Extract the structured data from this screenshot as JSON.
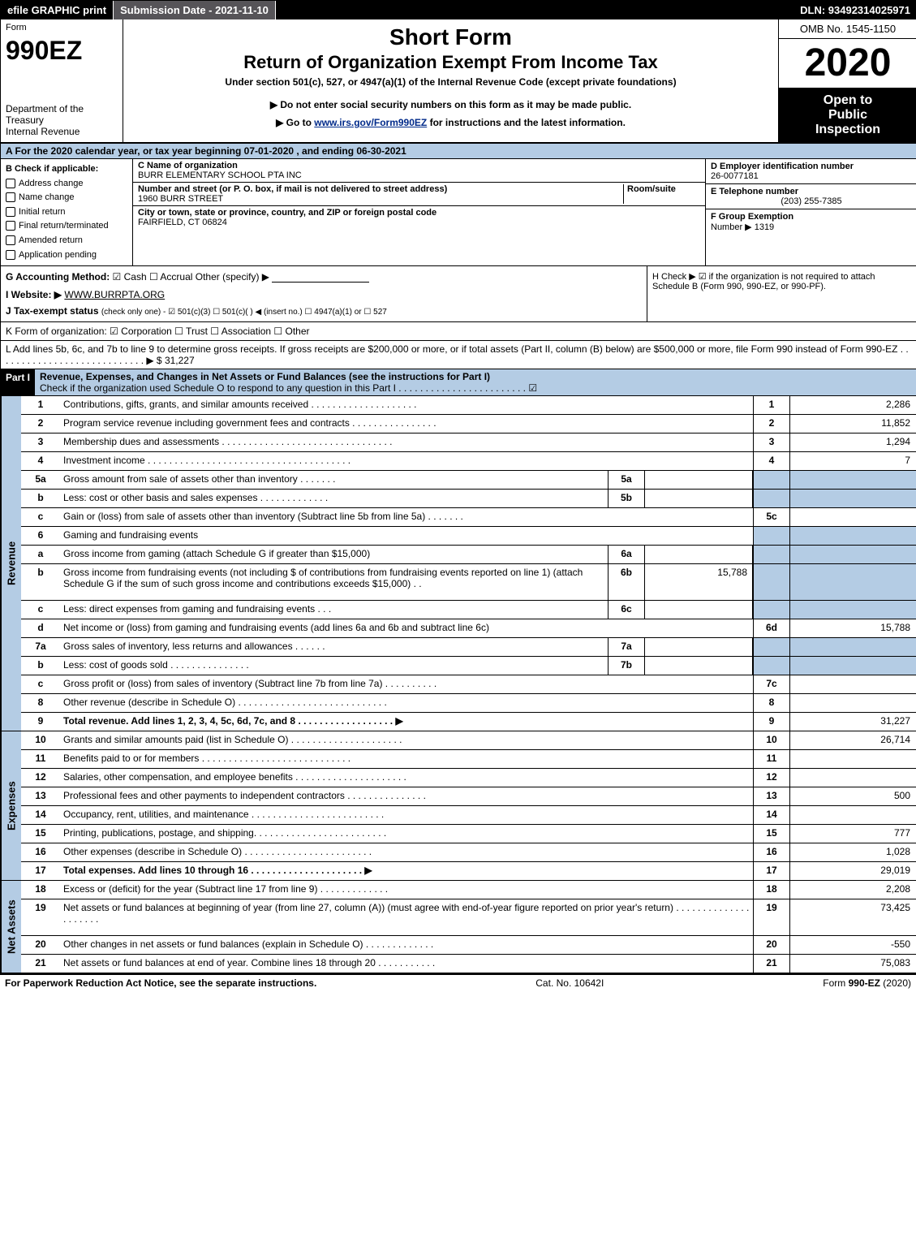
{
  "topbar": {
    "efile": "efile GRAPHIC print",
    "submission_label": "Submission Date - 2021-11-10",
    "dln": "DLN: 93492314025971"
  },
  "header": {
    "form_label": "Form",
    "form_code": "990EZ",
    "dept1": "Department of the Treasury",
    "dept2": "Internal Revenue",
    "title": "Short Form",
    "subtitle": "Return of Organization Exempt From Income Tax",
    "under": "Under section 501(c), 527, or 4947(a)(1) of the Internal Revenue Code (except private foundations)",
    "note": "▶ Do not enter social security numbers on this form as it may be made public.",
    "link_pre": "▶ Go to ",
    "link_url": "www.irs.gov/Form990EZ",
    "link_post": " for instructions and the latest information.",
    "omb": "OMB No. 1545-1150",
    "year": "2020",
    "open1": "Open to",
    "open2": "Public",
    "open3": "Inspection"
  },
  "row_a": "A For the 2020 calendar year, or tax year beginning 07-01-2020 , and ending 06-30-2021",
  "section_b": {
    "label": "B  Check if applicable:",
    "items": [
      "Address change",
      "Name change",
      "Initial return",
      "Final return/terminated",
      "Amended return",
      "Application pending"
    ],
    "c_label": "C Name of organization",
    "c_val": "BURR ELEMENTARY SCHOOL PTA INC",
    "addr_label": "Number and street (or P. O. box, if mail is not delivered to street address)",
    "addr_val": "1960 BURR STREET",
    "room_label": "Room/suite",
    "city_label": "City or town, state or province, country, and ZIP or foreign postal code",
    "city_val": "FAIRFIELD, CT  06824",
    "d_label": "D Employer identification number",
    "d_val": "26-0077181",
    "e_label": "E Telephone number",
    "e_val": "(203) 255-7385",
    "f_label": "F Group Exemption",
    "f_label2": "Number ▶",
    "f_val": "1319"
  },
  "row_g": {
    "g_label": "G Accounting Method:",
    "g_opts": "☑ Cash  ☐ Accrual  Other (specify) ▶",
    "i_label": "I Website: ▶",
    "i_val": "WWW.BURRPTA.ORG",
    "j_label": "J Tax-exempt status",
    "j_text": "(check only one) - ☑ 501(c)(3) ☐ 501(c)(  ) ◀ (insert no.) ☐ 4947(a)(1) or ☐ 527",
    "h_text": "H  Check ▶ ☑ if the organization is not required to attach Schedule B (Form 990, 990-EZ, or 990-PF)."
  },
  "row_k": "K Form of organization:  ☑ Corporation  ☐ Trust  ☐ Association  ☐ Other",
  "row_l": "L Add lines 5b, 6c, and 7b to line 9 to determine gross receipts. If gross receipts are $200,000 or more, or if total assets (Part II, column (B) below) are $500,000 or more, file Form 990 instead of Form 990-EZ . . . . . . . . . . . . . . . . . . . . . . . . . . . . ▶ $ 31,227",
  "part1": {
    "tag": "Part I",
    "title": "Revenue, Expenses, and Changes in Net Assets or Fund Balances (see the instructions for Part I)",
    "check": "Check if the organization used Schedule O to respond to any question in this Part I . . . . . . . . . . . . . . . . . . . . . . . . ☑"
  },
  "revenue": {
    "side": "Revenue",
    "rows": [
      {
        "n": "1",
        "d": "Contributions, gifts, grants, and similar amounts received . . . . . . . . . . . . . . . . . . . .",
        "rn": "1",
        "rv": "2,286"
      },
      {
        "n": "2",
        "d": "Program service revenue including government fees and contracts . . . . . . . . . . . . . . . .",
        "rn": "2",
        "rv": "11,852"
      },
      {
        "n": "3",
        "d": "Membership dues and assessments . . . . . . . . . . . . . . . . . . . . . . . . . . . . . . . .",
        "rn": "3",
        "rv": "1,294"
      },
      {
        "n": "4",
        "d": "Investment income . . . . . . . . . . . . . . . . . . . . . . . . . . . . . . . . . . . . . .",
        "rn": "4",
        "rv": "7"
      },
      {
        "n": "5a",
        "d": "Gross amount from sale of assets other than inventory . . . . . . .",
        "mn": "5a",
        "mv": "",
        "rn": "",
        "rv": "",
        "shade": true
      },
      {
        "n": "b",
        "d": "Less: cost or other basis and sales expenses . . . . . . . . . . . . .",
        "mn": "5b",
        "mv": "",
        "rn": "",
        "rv": "",
        "shade": true
      },
      {
        "n": "c",
        "d": "Gain or (loss) from sale of assets other than inventory (Subtract line 5b from line 5a) . . . . . . .",
        "rn": "5c",
        "rv": ""
      },
      {
        "n": "6",
        "d": "Gaming and fundraising events",
        "rn": "",
        "rv": "",
        "shade": true,
        "noBox": true
      },
      {
        "n": "a",
        "d": "Gross income from gaming (attach Schedule G if greater than $15,000)",
        "mn": "6a",
        "mv": "",
        "rn": "",
        "rv": "",
        "shade": true
      },
      {
        "n": "b",
        "d": "Gross income from fundraising events (not including $                  of contributions from fundraising events reported on line 1) (attach Schedule G if the sum of such gross income and contributions exceeds $15,000)    .   .",
        "mn": "6b",
        "mv": "15,788",
        "rn": "",
        "rv": "",
        "shade": true,
        "tall": true
      },
      {
        "n": "c",
        "d": "Less: direct expenses from gaming and fundraising events    .   .   .",
        "mn": "6c",
        "mv": "",
        "rn": "",
        "rv": "",
        "shade": true
      },
      {
        "n": "d",
        "d": "Net income or (loss) from gaming and fundraising events (add lines 6a and 6b and subtract line 6c)",
        "rn": "6d",
        "rv": "15,788"
      },
      {
        "n": "7a",
        "d": "Gross sales of inventory, less returns and allowances . . . . . .",
        "mn": "7a",
        "mv": "",
        "rn": "",
        "rv": "",
        "shade": true
      },
      {
        "n": "b",
        "d": "Less: cost of goods sold     . . . . . . . . . . . . . . .",
        "mn": "7b",
        "mv": "",
        "rn": "",
        "rv": "",
        "shade": true
      },
      {
        "n": "c",
        "d": "Gross profit or (loss) from sales of inventory (Subtract line 7b from line 7a) . . . . . . . . . .",
        "rn": "7c",
        "rv": ""
      },
      {
        "n": "8",
        "d": "Other revenue (describe in Schedule O) . . . . . . . . . . . . . . . . . . . . . . . . . . . .",
        "rn": "8",
        "rv": ""
      },
      {
        "n": "9",
        "d": "Total revenue. Add lines 1, 2, 3, 4, 5c, 6d, 7c, and 8 . . . . . . . . . . . . . . . . . .    ▶",
        "rn": "9",
        "rv": "31,227",
        "bold": true
      }
    ]
  },
  "expenses": {
    "side": "Expenses",
    "rows": [
      {
        "n": "10",
        "d": "Grants and similar amounts paid (list in Schedule O) . . . . . . . . . . . . . . . . . . . . .",
        "rn": "10",
        "rv": "26,714"
      },
      {
        "n": "11",
        "d": "Benefits paid to or for members   . . . . . . . . . . . . . . . . . . . . . . . . . . . .",
        "rn": "11",
        "rv": ""
      },
      {
        "n": "12",
        "d": "Salaries, other compensation, and employee benefits . . . . . . . . . . . . . . . . . . . . .",
        "rn": "12",
        "rv": ""
      },
      {
        "n": "13",
        "d": "Professional fees and other payments to independent contractors . . . . . . . . . . . . . . .",
        "rn": "13",
        "rv": "500"
      },
      {
        "n": "14",
        "d": "Occupancy, rent, utilities, and maintenance . . . . . . . . . . . . . . . . . . . . . . . . .",
        "rn": "14",
        "rv": ""
      },
      {
        "n": "15",
        "d": "Printing, publications, postage, and shipping. . . . . . . . . . . . . . . . . . . . . . . . .",
        "rn": "15",
        "rv": "777"
      },
      {
        "n": "16",
        "d": "Other expenses (describe in Schedule O)   . . . . . . . . . . . . . . . . . . . . . . . .",
        "rn": "16",
        "rv": "1,028"
      },
      {
        "n": "17",
        "d": "Total expenses. Add lines 10 through 16   . . . . . . . . . . . . . . . . . . . . .    ▶",
        "rn": "17",
        "rv": "29,019",
        "bold": true
      }
    ]
  },
  "netassets": {
    "side": "Net Assets",
    "rows": [
      {
        "n": "18",
        "d": "Excess or (deficit) for the year (Subtract line 17 from line 9)     . . . . . . . . . . . . .",
        "rn": "18",
        "rv": "2,208"
      },
      {
        "n": "19",
        "d": "Net assets or fund balances at beginning of year (from line 27, column (A)) (must agree with end-of-year figure reported on prior year's return) . . . . . . . . . . . . . . . . . . . . .",
        "rn": "19",
        "rv": "73,425",
        "tall": true
      },
      {
        "n": "20",
        "d": "Other changes in net assets or fund balances (explain in Schedule O) . . . . . . . . . . . . .",
        "rn": "20",
        "rv": "-550"
      },
      {
        "n": "21",
        "d": "Net assets or fund balances at end of year. Combine lines 18 through 20 . . . . . . . . . . .",
        "rn": "21",
        "rv": "75,083"
      }
    ]
  },
  "footer": {
    "left": "For Paperwork Reduction Act Notice, see the separate instructions.",
    "mid": "Cat. No. 10642I",
    "right_pre": "Form ",
    "right_code": "990-EZ",
    "right_post": " (2020)"
  },
  "colors": {
    "blue_bg": "#b4cce4",
    "black": "#000000",
    "link": "#002a8a"
  }
}
